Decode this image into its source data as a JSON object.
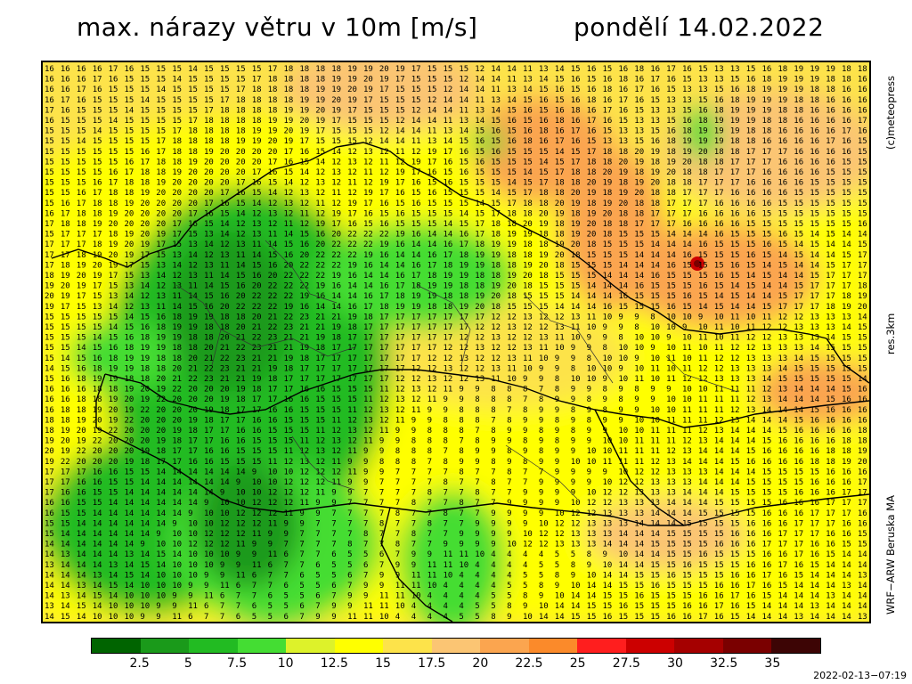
{
  "header": {
    "title": "max. nárazy větru v 10m [m/s]",
    "date": "pondělí 14.02.2022"
  },
  "side_labels": {
    "copyright": "(c)meteopress",
    "resolution": "res.3km",
    "model": "WRF−ARW Beruska MA"
  },
  "legend": {
    "colors": [
      "#006400",
      "#1a9a1a",
      "#22bb22",
      "#44dd33",
      "#ddf22a",
      "#ffff00",
      "#fde34a",
      "#fbc573",
      "#fba54f",
      "#fb8a2a",
      "#ff1e1e",
      "#cc0000",
      "#a50000",
      "#7a0000",
      "#3d0505"
    ],
    "labels": [
      "2.5",
      "5",
      "7.5",
      "10",
      "12.5",
      "15",
      "17.5",
      "20",
      "22.5",
      "25",
      "27.5",
      "30",
      "32.5",
      "35"
    ]
  },
  "timestamp": "2022-02-13−07:19",
  "map": {
    "rows_sample": [
      "16 16 16 16 17 16 15 15 15 14 15 15 15 15 17 18 18 18 18 19 19 20 19 17 15 15 15 12 14 14 11 13 14 15 16 15 16 18 16 17 16 15 13 13 15 16 18 19 19 19 18 18",
      "17 17 17 16 16 16 16 15 15 15 15 15 15 15 16 17 18 18 19 20 20 20 20 17 16 15 14 12 13 12 11 12 19 17 16 15 16 15 15 15 14 15 17 18 18 20 19 18 19 20 18 18",
      "15 15 15 14 14 14 16 15 15 15 16 15 14 15 14 14 15 17 17 17 18 19 20 19 17 15 13 14 12 13 11 14 15 16 20 22 22 22 19 16 14 14 16 17 18 19 19 18 18 19 20 18",
      "12 12 13 12 12 13 11 10 9 9 8 10 10 9 10 11 10 11 12 12 13 13 13 14 15 15 15 15 15 14 15 16 18 19 19 18 18 20 21 22 23 21 21 19 18 17 17 17 17 17 17 17",
      "11 12 13 12 11 9 9 8 8 8 7 8 9 9 8 9 8 9 9 10 10 11 11 11 12 13 14 14 14 15 16 16 16 16 18 18 19 20 19 22 20 20 20 19 18 17 17 16 16 15 15 15",
      "9 10 10 12 12 12 11 9 9 7 7 7 7 8 7 7 8 7 7 9 9 9 9 10 12 12 13 13 13 14 14 14 15 15 15 15 16 16 16 17 17 17 16 16 15 15 14 14 14 14 14 14",
      "13 14 15 14 10 10 10 9 9 11 6 7 7 6 5 5 6 7 9 9 11 11 10 4 4 4 4 5 5 8 9 10 14 14 15 15 16 15 15 15 16 16 17 16 15 14 14 14 13 14 14 14"
    ]
  }
}
